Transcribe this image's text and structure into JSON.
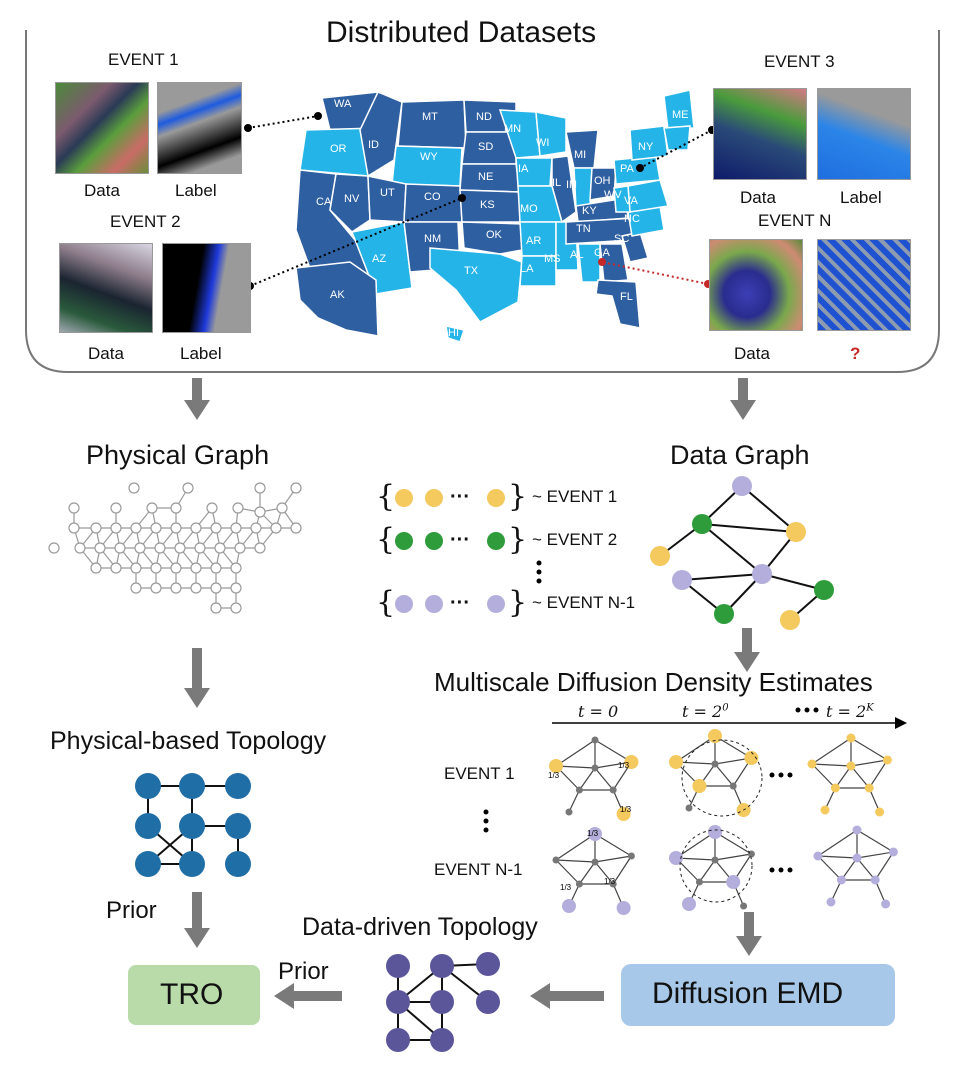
{
  "distributed": {
    "title": "Distributed Datasets",
    "event1": {
      "title": "EVENT 1",
      "data": "Data",
      "label": "Label"
    },
    "event2": {
      "title": "EVENT 2",
      "data": "Data",
      "label": "Label"
    },
    "event3": {
      "title": "EVENT 3",
      "data": "Data",
      "label": "Label"
    },
    "eventN": {
      "title": "EVENT N",
      "data": "Data",
      "label": "?"
    }
  },
  "states": [
    "WA",
    "OR",
    "CA",
    "ID",
    "NV",
    "MT",
    "WY",
    "UT",
    "AZ",
    "CO",
    "NM",
    "ND",
    "SD",
    "NE",
    "KS",
    "OK",
    "TX",
    "MN",
    "IA",
    "MO",
    "AR",
    "LA",
    "WI",
    "IL",
    "MS",
    "MI",
    "IN",
    "KY",
    "TN",
    "AL",
    "OH",
    "GA",
    "FL",
    "SC",
    "NC",
    "VA",
    "WV",
    "PA",
    "NY",
    "ME",
    "AK",
    "HI"
  ],
  "physical": {
    "title": "Physical Graph",
    "topology": "Physical-based Topology",
    "prior": "Prior"
  },
  "data_graph": {
    "title": "Data Graph",
    "rows": [
      {
        "label": "~ EVENT 1",
        "color": "#f4c95d"
      },
      {
        "label": "~ EVENT 2",
        "color": "#2e9c3a"
      },
      {
        "label": "~ EVENT N-1",
        "color": "#b3aedb"
      }
    ],
    "dots": "···"
  },
  "multiscale": {
    "title": "Multiscale Diffusion Density Estimates",
    "t0": "t = 0",
    "t1": "t = 2",
    "t1_exp": "0",
    "tk": "t = 2",
    "tk_exp": "K",
    "row1": "EVENT 1",
    "row2": "EVENT N-1",
    "frac": "1/3"
  },
  "bottom": {
    "tro": "TRO",
    "prior": "Prior",
    "data_driven": "Data-driven Topology",
    "emd": "Diffusion EMD"
  },
  "colors": {
    "yellow": "#f4c95d",
    "green": "#2e9c3a",
    "purple": "#b3aedb",
    "blue_node": "#1f6ea6",
    "dd_node": "#5b5599",
    "tro_bg": "#b8dba9",
    "emd_bg": "#a7c8e8",
    "arrow": "#7a7a7a",
    "map_dark": "#2e5fa0",
    "map_light": "#25b4e8"
  }
}
